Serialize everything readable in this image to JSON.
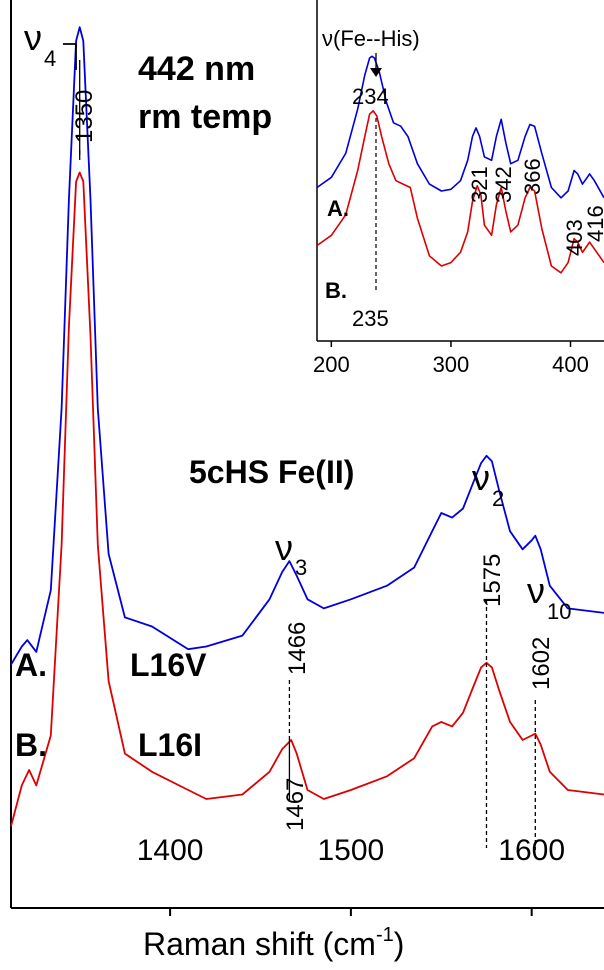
{
  "chart_data": [
    {
      "type": "line",
      "xlabel": "Raman shift (cm",
      "xlabel_sup": "-1",
      "xlabel_end": ")",
      "xlim": [
        1312,
        1640
      ],
      "ylim": [
        0,
        1
      ],
      "x_ticks": [
        1400,
        1500,
        1600
      ],
      "y_ticks_labeled": false,
      "grid": false,
      "annotations": {
        "excitation": "442 nm",
        "temperature": "rm temp",
        "state": "5cHS Fe(II)",
        "label_a": "A.",
        "label_b": "B.",
        "variant_a": "L16V",
        "variant_b": "L16I",
        "nu": "ν",
        "nu4_sub": "4",
        "nu3_sub": "3",
        "nu2_sub": "2",
        "nu10_sub": "10",
        "peak_1350": "1350",
        "peak_1466": "1466",
        "peak_1467": "1467",
        "peak_1575": "1575",
        "peak_1602": "1602"
      },
      "series": [
        {
          "color": "#0000dd",
          "peaks_cm": [
            1350,
            1466,
            1575,
            1602
          ],
          "x": [
            1312,
            1318,
            1321,
            1326,
            1334,
            1340,
            1344,
            1348,
            1350,
            1352,
            1356,
            1360,
            1366,
            1375,
            1390,
            1410,
            1420,
            1440,
            1455,
            1462,
            1466,
            1470,
            1476,
            1485,
            1500,
            1520,
            1535,
            1545,
            1550,
            1556,
            1562,
            1568,
            1572,
            1575,
            1578,
            1582,
            1588,
            1595,
            1600,
            1602,
            1605,
            1610,
            1620,
            1640
          ],
          "y": [
            0.268,
            0.288,
            0.295,
            0.282,
            0.35,
            0.55,
            0.78,
            0.955,
            0.97,
            0.955,
            0.78,
            0.55,
            0.39,
            0.32,
            0.31,
            0.285,
            0.288,
            0.3,
            0.34,
            0.37,
            0.382,
            0.366,
            0.34,
            0.33,
            0.34,
            0.355,
            0.375,
            0.415,
            0.435,
            0.43,
            0.44,
            0.47,
            0.49,
            0.498,
            0.492,
            0.46,
            0.415,
            0.395,
            0.405,
            0.41,
            0.395,
            0.355,
            0.33,
            0.325
          ]
        },
        {
          "color": "#dd0000",
          "x": [
            1312,
            1318,
            1322,
            1326,
            1334,
            1340,
            1344,
            1348,
            1350,
            1352,
            1356,
            1360,
            1366,
            1375,
            1390,
            1410,
            1420,
            1440,
            1455,
            1462,
            1467,
            1470,
            1476,
            1485,
            1500,
            1520,
            1535,
            1545,
            1550,
            1556,
            1562,
            1568,
            1572,
            1575,
            1578,
            1582,
            1588,
            1595,
            1600,
            1602,
            1605,
            1610,
            1620,
            1640
          ],
          "y": [
            0.09,
            0.135,
            0.152,
            0.135,
            0.19,
            0.4,
            0.64,
            0.8,
            0.81,
            0.8,
            0.63,
            0.4,
            0.25,
            0.17,
            0.15,
            0.13,
            0.12,
            0.125,
            0.15,
            0.175,
            0.185,
            0.17,
            0.13,
            0.12,
            0.13,
            0.145,
            0.165,
            0.2,
            0.205,
            0.2,
            0.215,
            0.245,
            0.265,
            0.27,
            0.265,
            0.24,
            0.205,
            0.185,
            0.19,
            0.192,
            0.18,
            0.15,
            0.13,
            0.125
          ]
        }
      ]
    },
    {
      "type": "line",
      "inset": true,
      "xlim": [
        188,
        428
      ],
      "ylim": [
        0,
        1
      ],
      "x_ticks": [
        200,
        300,
        400
      ],
      "annotations": {
        "mode": "ν(Fe--His)",
        "arrow": "↓",
        "peak_234": "234",
        "peak_235": "235",
        "peak_321": "321",
        "peak_342": "342",
        "peak_366": "366",
        "peak_403": "403",
        "peak_416": "416",
        "label_a": "A.",
        "label_b": "B."
      },
      "series": [
        {
          "color": "#0000dd",
          "x": [
            188,
            200,
            212,
            222,
            228,
            232,
            234,
            236,
            240,
            246,
            252,
            258,
            264,
            272,
            282,
            292,
            300,
            308,
            314,
            318,
            321,
            324,
            328,
            334,
            338,
            342,
            346,
            350,
            356,
            362,
            366,
            370,
            376,
            384,
            392,
            398,
            403,
            406,
            410,
            414,
            416,
            420,
            428
          ],
          "y": [
            0.45,
            0.48,
            0.55,
            0.68,
            0.78,
            0.83,
            0.835,
            0.83,
            0.79,
            0.7,
            0.64,
            0.63,
            0.6,
            0.52,
            0.46,
            0.44,
            0.445,
            0.47,
            0.53,
            0.6,
            0.625,
            0.6,
            0.54,
            0.53,
            0.6,
            0.65,
            0.58,
            0.52,
            0.53,
            0.6,
            0.635,
            0.63,
            0.55,
            0.45,
            0.42,
            0.44,
            0.5,
            0.49,
            0.46,
            0.48,
            0.49,
            0.47,
            0.42
          ]
        },
        {
          "color": "#dd0000",
          "x": [
            188,
            200,
            212,
            222,
            228,
            232,
            235,
            238,
            242,
            248,
            254,
            260,
            266,
            272,
            282,
            292,
            300,
            308,
            314,
            318,
            322,
            325,
            328,
            334,
            338,
            342,
            346,
            350,
            356,
            362,
            366,
            370,
            376,
            384,
            392,
            398,
            403,
            406,
            410,
            414,
            416,
            420,
            428
          ],
          "y": [
            0.28,
            0.31,
            0.37,
            0.5,
            0.6,
            0.665,
            0.675,
            0.66,
            0.6,
            0.52,
            0.47,
            0.46,
            0.45,
            0.36,
            0.25,
            0.22,
            0.23,
            0.26,
            0.32,
            0.41,
            0.455,
            0.43,
            0.34,
            0.31,
            0.4,
            0.45,
            0.38,
            0.32,
            0.34,
            0.42,
            0.45,
            0.44,
            0.33,
            0.22,
            0.2,
            0.23,
            0.3,
            0.29,
            0.26,
            0.28,
            0.29,
            0.27,
            0.23
          ]
        }
      ]
    }
  ]
}
